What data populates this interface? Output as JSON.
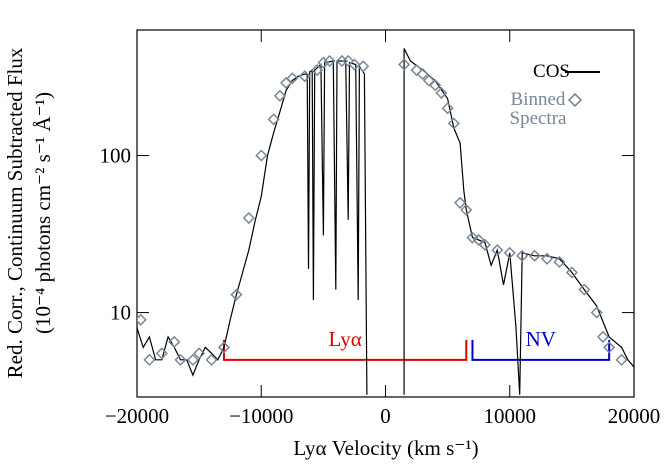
{
  "chart_data": {
    "type": "line",
    "xlabel": "Lyα Velocity (km s⁻¹)",
    "ylabel": [
      "Red. Corr., Continuum Subtracted Flux",
      "(10⁻⁴ photons cm⁻² s⁻¹ Å⁻¹)"
    ],
    "xlim": [
      -20000,
      20000
    ],
    "xticks": [
      {
        "value": -20000,
        "label": "−20000"
      },
      {
        "value": -10000,
        "label": "−10000"
      },
      0,
      10000,
      20000
    ],
    "ylim": [
      2.9,
      630
    ],
    "yticks": [
      10,
      100
    ],
    "log_y": true,
    "legend": "upper right",
    "series": [
      {
        "name": "COS",
        "type": "line",
        "color": "#000000",
        "x": [
          -20000,
          -19500,
          -19000,
          -18500,
          -18000,
          -17500,
          -17000,
          -16500,
          -16000,
          -15500,
          -15000,
          -14500,
          -14000,
          -13500,
          -13000,
          -12500,
          -12000,
          -11500,
          -11000,
          -10500,
          -10000,
          -9500,
          -9000,
          -8500,
          -8000,
          -7500,
          -7000,
          -6500,
          -6300,
          -6200,
          -6100,
          -5900,
          -5800,
          -5700,
          -5200,
          -5000,
          -4900,
          -4200,
          -4000,
          -3900,
          -3200,
          -3000,
          -2900,
          -2400,
          -2200,
          -2100,
          -1700,
          -1500,
          0,
          1500,
          1500,
          2000,
          3000,
          4000,
          5000,
          5500,
          6000,
          6300,
          6500,
          7000,
          8000,
          8500,
          9000,
          9500,
          10000,
          10500,
          10800,
          11000,
          12000,
          13000,
          14000,
          15000,
          16000,
          17000,
          18000,
          19000,
          19500,
          20000
        ],
        "values": [
          8,
          6,
          7,
          5,
          5,
          7,
          6,
          5,
          5,
          4,
          5,
          6,
          5.5,
          5,
          6,
          9,
          13,
          18,
          25,
          38,
          55,
          100,
          140,
          190,
          260,
          300,
          320,
          330,
          330,
          19,
          340,
          350,
          12,
          350,
          380,
          31,
          390,
          400,
          14,
          400,
          400,
          39,
          390,
          380,
          12,
          370,
          330,
          3,
          null,
          3,
          480,
          400,
          350,
          300,
          230,
          150,
          120,
          60,
          45,
          30,
          28,
          20,
          25,
          15,
          24,
          8,
          3,
          24,
          23,
          23,
          22,
          18,
          14,
          11,
          7,
          6,
          5,
          4.5
        ]
      },
      {
        "name": "Binned Spectra",
        "type": "scatter",
        "marker": "diamond",
        "color": "#7a8796",
        "x": [
          -19700,
          -19000,
          -18000,
          -17000,
          -16500,
          -15500,
          -15000,
          -14000,
          -13000,
          -12000,
          -11000,
          -10000,
          -9000,
          -8500,
          -8000,
          -7500,
          -6500,
          -5500,
          -5000,
          -4500,
          -3500,
          -3000,
          -2500,
          -1800,
          1500,
          2500,
          3000,
          3500,
          4000,
          4500,
          5000,
          5500,
          6000,
          6500,
          7000,
          7500,
          8000,
          9000,
          10000,
          11000,
          12000,
          13000,
          14000,
          15000,
          16000,
          17000,
          17500,
          18000,
          19000
        ],
        "values": [
          9,
          5,
          5.5,
          6.5,
          5,
          5,
          5.5,
          5,
          6,
          13,
          40,
          100,
          170,
          240,
          290,
          310,
          320,
          350,
          390,
          400,
          400,
          400,
          380,
          370,
          380,
          350,
          330,
          300,
          280,
          250,
          200,
          160,
          50,
          45,
          30,
          29,
          27,
          25,
          24,
          23,
          23,
          22,
          21,
          18,
          14,
          10,
          7,
          6,
          5
        ]
      }
    ],
    "annotations": [
      {
        "text": "Lyα",
        "x": [
          -13000,
          6500
        ],
        "y": 5,
        "color": "#e00000"
      },
      {
        "text": "NV",
        "x": [
          7000,
          18000
        ],
        "y": 5,
        "color": "#0000cc"
      }
    ]
  }
}
